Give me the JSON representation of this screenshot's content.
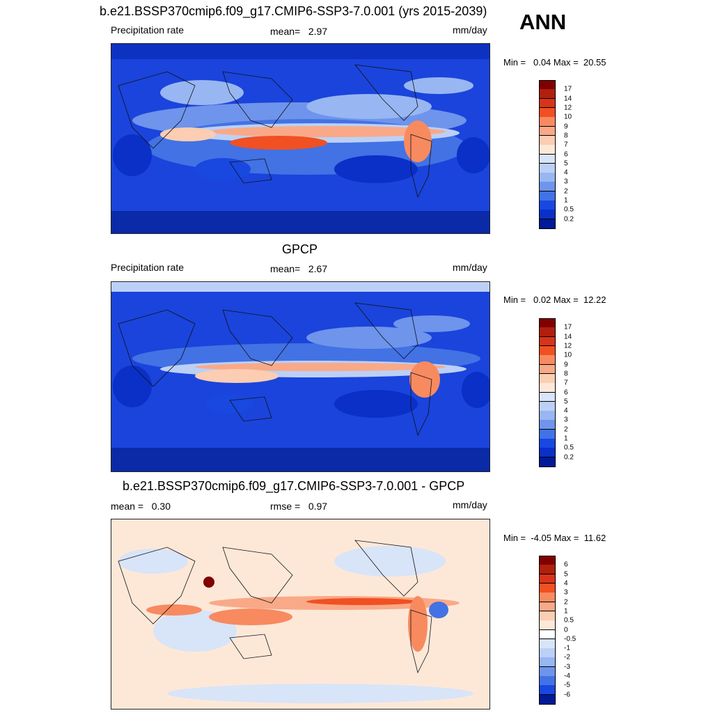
{
  "header": {
    "ann": "ANN"
  },
  "panels": [
    {
      "title": "b.e21.BSSP370cmip6.f09_g17.CMIP6-SSP3-7.0.001 (yrs 2015-2039)",
      "left": "Precipitation rate",
      "center": "mean=   2.97",
      "right": "mm/day",
      "minmax": "Min =   0.04 Max =  20.55",
      "colorbar": {
        "labels": [
          "17",
          "14",
          "12",
          "10",
          "9",
          "8",
          "7",
          "6",
          "5",
          "4",
          "3",
          "2",
          "1",
          "0.5",
          "0.2"
        ],
        "colors": [
          "#800000",
          "#b0200c",
          "#d8341a",
          "#f05022",
          "#f88a60",
          "#f9a987",
          "#fbcdb2",
          "#fde8d8",
          "#d8e4f8",
          "#bcd0f6",
          "#98b6f2",
          "#6e94ec",
          "#4272e4",
          "#1848e0",
          "#0a30c8",
          "#001a98"
        ]
      }
    },
    {
      "title": "GPCP",
      "left": "Precipitation rate",
      "center": "mean=   2.67",
      "right": "mm/day",
      "minmax": "Min =   0.02 Max =  12.22",
      "colorbar": {
        "labels": [
          "17",
          "14",
          "12",
          "10",
          "9",
          "8",
          "7",
          "6",
          "5",
          "4",
          "3",
          "2",
          "1",
          "0.5",
          "0.2"
        ],
        "colors": [
          "#800000",
          "#b0200c",
          "#d8341a",
          "#f05022",
          "#f88a60",
          "#f9a987",
          "#fbcdb2",
          "#fde8d8",
          "#d8e4f8",
          "#bcd0f6",
          "#98b6f2",
          "#6e94ec",
          "#4272e4",
          "#1848e0",
          "#0a30c8",
          "#001a98"
        ]
      }
    },
    {
      "title": "b.e21.BSSP370cmip6.f09_g17.CMIP6-SSP3-7.0.001 - GPCP",
      "left": "mean =   0.30",
      "center": "rmse =   0.97",
      "right": "mm/day",
      "minmax": "Min =  -4.05 Max =  11.62",
      "colorbar": {
        "labels": [
          "6",
          "5",
          "4",
          "3",
          "2",
          "1",
          "0.5",
          "0",
          "-0.5",
          "-1",
          "-2",
          "-3",
          "-4",
          "-5",
          "-6"
        ],
        "colors": [
          "#800000",
          "#b0200c",
          "#d8341a",
          "#f05022",
          "#f88a60",
          "#f9a987",
          "#fbcdb2",
          "#fde8d8",
          "#ffffff",
          "#d8e4f8",
          "#bcd0f6",
          "#98b6f2",
          "#6e94ec",
          "#4272e4",
          "#1848e0",
          "#001a98"
        ]
      }
    }
  ]
}
